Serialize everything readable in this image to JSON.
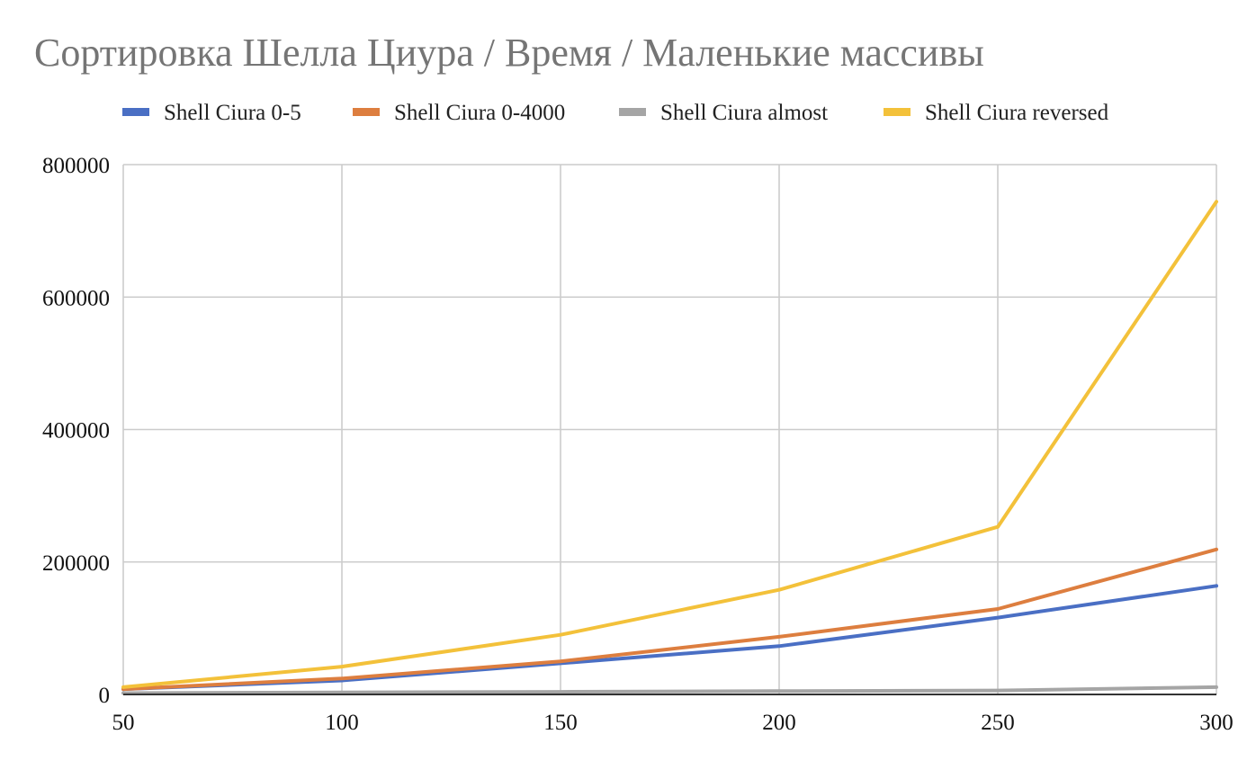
{
  "chart_data": {
    "type": "line",
    "title": "Сортировка Шелла Циура / Время / Маленькие массивы",
    "xlabel": "",
    "ylabel": "",
    "x": [
      50,
      100,
      150,
      200,
      250,
      300
    ],
    "x_tick_labels": [
      "50",
      "100",
      "150",
      "200",
      "250",
      "300"
    ],
    "ylim": [
      0,
      800000
    ],
    "y_tick_values": [
      0,
      200000,
      400000,
      600000,
      800000
    ],
    "y_tick_labels": [
      "0",
      "200000",
      "400000",
      "600000",
      "800000"
    ],
    "grid": true,
    "legend_position": "top",
    "series": [
      {
        "name": "Shell Ciura 0-5",
        "color": "#4a6fc4",
        "values": [
          8000,
          21000,
          47000,
          73000,
          116000,
          164000
        ]
      },
      {
        "name": "Shell Ciura 0-4000",
        "color": "#dd7e3f",
        "values": [
          8000,
          24000,
          50000,
          87000,
          129000,
          219000
        ]
      },
      {
        "name": "Shell Ciura almost",
        "color": "#a5a5a5",
        "values": [
          2000,
          3000,
          4000,
          5000,
          6000,
          11000
        ]
      },
      {
        "name": "Shell Ciura reversed",
        "color": "#f3c13a",
        "values": [
          11000,
          42000,
          90000,
          158000,
          253000,
          744000
        ]
      }
    ]
  }
}
